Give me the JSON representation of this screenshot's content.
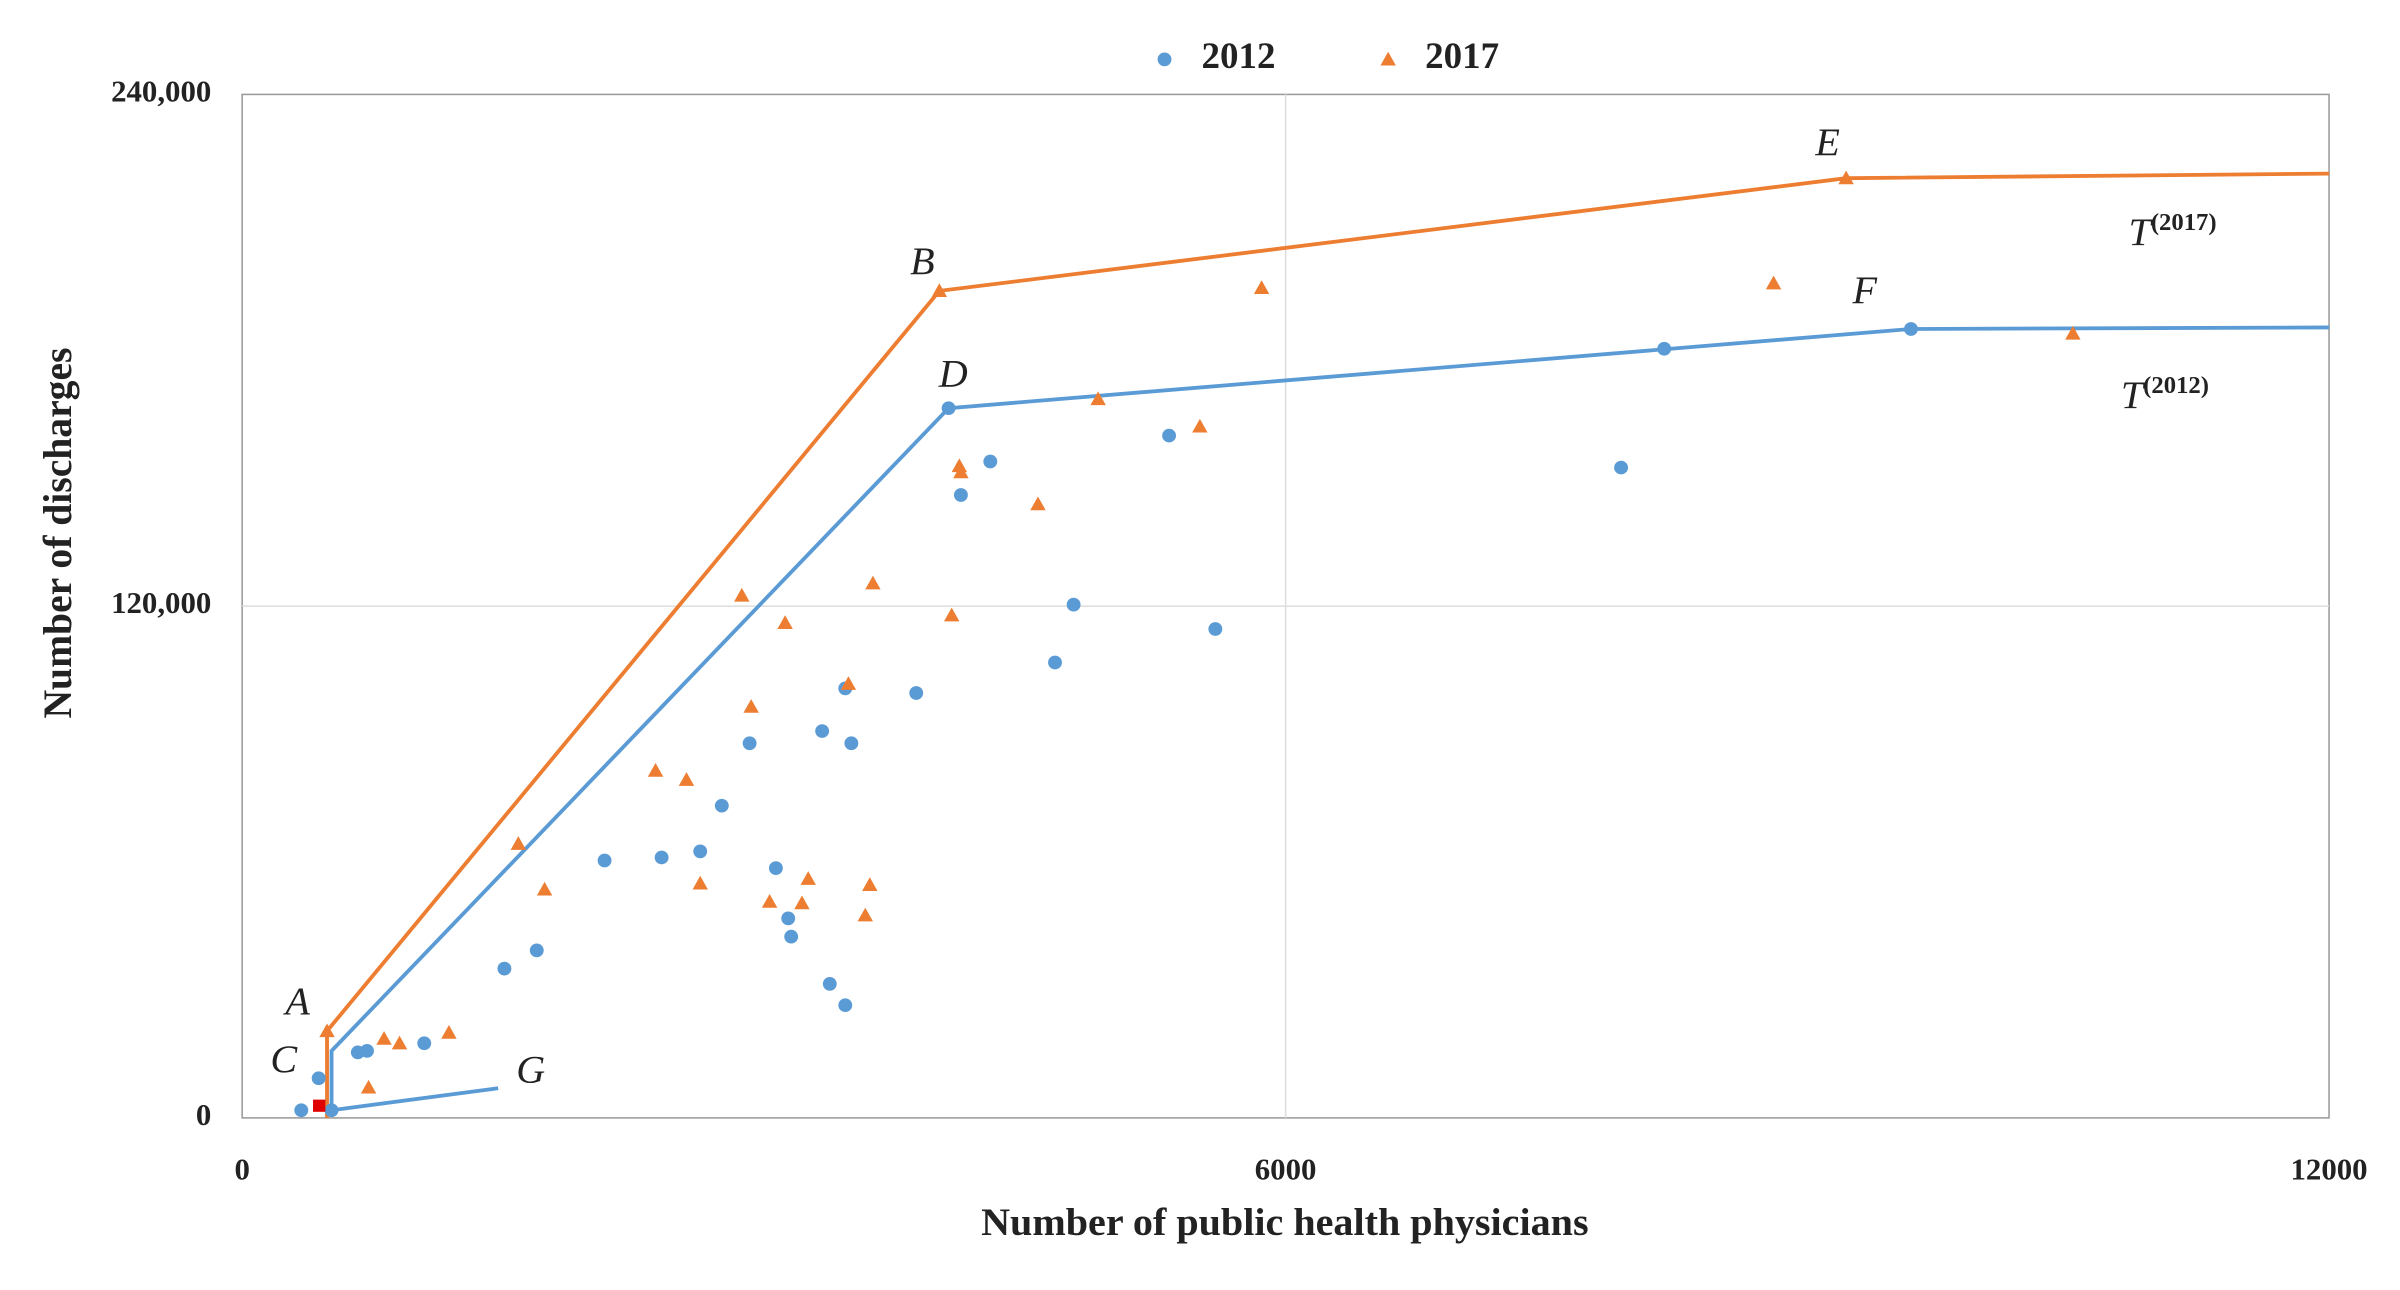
{
  "chart_data": {
    "type": "scatter",
    "x_label": "Number of public health physicians",
    "y_label": "Number of discharges",
    "xlim": [
      0,
      12000
    ],
    "ylim": [
      0,
      240000
    ],
    "xticks": [
      0,
      6000,
      12000
    ],
    "yticks": [
      0,
      {
        "value": 120000,
        "label": "120,000"
      },
      {
        "value": 240000,
        "label": "240,000"
      }
    ],
    "grid": true,
    "legend": "top",
    "series": [
      {
        "name": "2012",
        "color": "#5b9bd5",
        "marker": "circle",
        "x": [
          340,
          440,
          665,
          718,
          1047,
          1508,
          1694,
          2084,
          2412,
          2634,
          2758,
          2918,
          3069,
          3140,
          3157,
          3335,
          3379,
          3468,
          3468,
          3503,
          3876,
          4062,
          4133,
          4302,
          4674,
          4781,
          5330,
          5596,
          7929,
          8177,
          9596,
          514
        ],
        "y": [
          1800,
          9300,
          15357,
          15714,
          17500,
          35000,
          39286,
          60357,
          61071,
          62500,
          73214,
          87857,
          58571,
          46786,
          42500,
          90714,
          31429,
          26429,
          100714,
          87857,
          99643,
          166429,
          146071,
          153929,
          106786,
          120357,
          160000,
          114643,
          152500,
          180357,
          185000,
          1800
        ]
      },
      {
        "name": "2017",
        "color": "#ed7d31",
        "marker": "triangle",
        "x": [
          488,
          727,
          816,
          905,
          1189,
          1588,
          1739,
          2377,
          2555,
          2634,
          2873,
          2927,
          3033,
          3122,
          3219,
          3255,
          3486,
          3583,
          3609,
          3627,
          4009,
          4080,
          4124,
          4133,
          4576,
          4922,
          5507,
          5862,
          8806,
          9223,
          10527
        ],
        "y": [
          20357,
          7143,
          18571,
          17500,
          20000,
          64286,
          53571,
          81429,
          79286,
          55000,
          122500,
          96429,
          50714,
          116071,
          50357,
          56071,
          101786,
          47500,
          54643,
          125357,
          193929,
          117857,
          152857,
          151429,
          143929,
          168571,
          162143,
          194643,
          195714,
          220357,
          183929
        ]
      },
      {
        "color": "#e00000",
        "marker": "square",
        "x": [
          443
        ],
        "y": [
          2857
        ]
      }
    ],
    "lines": [
      {
        "color": "#ed7d31",
        "x": [
          488,
          488,
          4009,
          9223,
          12000
        ],
        "y": [
          0,
          20357,
          193929,
          220357,
          221429
        ]
      },
      {
        "color": "#5b9bd5",
        "x": [
          514,
          514,
          4062,
          9596,
          12000
        ],
        "y": [
          1786,
          15714,
          166429,
          185000,
          185357
        ]
      },
      {
        "color": "#5b9bd5",
        "x": [
          514,
          1472
        ],
        "y": [
          1786,
          6964
        ]
      }
    ],
    "annotations": [
      {
        "text": "A",
        "x": 319,
        "y": 26429
      },
      {
        "text": "B",
        "x": 3911,
        "y": 200000
      },
      {
        "text": "C",
        "x": 239,
        "y": 12857
      },
      {
        "text": "D",
        "x": 4089,
        "y": 173571
      },
      {
        "text": "E",
        "x": 9117,
        "y": 227857
      },
      {
        "text": "F",
        "x": 9330,
        "y": 193214
      },
      {
        "text": "G",
        "x": 1659,
        "y": 10357
      },
      {
        "text": "T",
        "sup": "(2017)",
        "x": 10847,
        "y": 206786
      },
      {
        "text": "T",
        "sup": "(2012)",
        "x": 10803,
        "y": 168571
      }
    ]
  }
}
